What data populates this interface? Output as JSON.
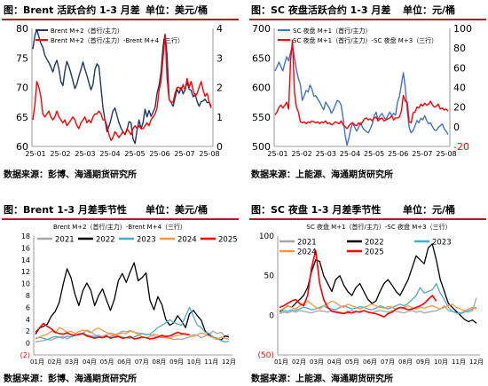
{
  "panels": [
    {
      "title": "图：Brent 活跃合约 1-3 月差",
      "unit": "单位：美元/桶",
      "source": "数据来源：彭博、海通期货研究所"
    },
    {
      "title": "图：SC 夜盘活跃合约 1-3 月差",
      "unit": "单位：元/桶",
      "source": "数据来源：上能源、海通期货研究所"
    },
    {
      "title": "图：Brent 1-3 月差季节性",
      "unit": "单位：美元/桶",
      "source": "数据来源：彭博、海通期货研究所"
    },
    {
      "title": "图：SC 夜盘 1-3 月差季节性",
      "unit": "单位：元/桶",
      "source": "数据来源：上能源、海通期货研究所"
    }
  ],
  "colors": {
    "rule": "#b31b1b",
    "blue": "#4472c4",
    "navy": "#1f3864",
    "red": "#ff0000",
    "gray": "#a6a6a6",
    "black": "#000000",
    "teal": "#4bacc6",
    "orange": "#f79646"
  },
  "chart_data": [
    {
      "type": "line",
      "x_labels": [
        "25-01",
        "25-02",
        "25-03",
        "25-04",
        "25-05",
        "25-06",
        "25-07",
        "25-08"
      ],
      "left_axis": {
        "ticks": [
          60,
          65,
          70,
          75,
          80
        ],
        "ylim": [
          60,
          80
        ]
      },
      "right_axis": {
        "ticks": [
          0,
          1,
          2,
          3,
          4
        ],
        "ylim": [
          0,
          4
        ]
      },
      "series": [
        {
          "name": "Brent M+2（首行/主力）",
          "axis": "left",
          "values": [
            76.5,
            78.8,
            79.8,
            78.6,
            77.5,
            76.8,
            75.4,
            74.8,
            74.2,
            73.5,
            72.6,
            73.8,
            74.6,
            73.1,
            71.0,
            70.3,
            72.7,
            74.4,
            73.5,
            72.4,
            71.1,
            69.8,
            70.6,
            71.9,
            73.0,
            74.3,
            73.1,
            72.0,
            70.8,
            69.6,
            70.5,
            73.0,
            74.0,
            73.5,
            70.0,
            66.6,
            64.5,
            62.5,
            63.4,
            64.6,
            66.0,
            66.5,
            65.2,
            64.0,
            63.1,
            62.5,
            62.0,
            62.8,
            64.2,
            64.0,
            61.3,
            60.5,
            62.7,
            64.5,
            63.0,
            64.0,
            66.3,
            65.0,
            66.1,
            65.1,
            65.8,
            66.6,
            69.0,
            70.4,
            72.6,
            77.0,
            79.0,
            75.5,
            68.0,
            67.5,
            66.8,
            68.2,
            69.7,
            69.0,
            70.0,
            68.9,
            69.6,
            70.9,
            69.7,
            69.5,
            68.4,
            68.9,
            67.6,
            66.8,
            67.6,
            67.7,
            68.0,
            67.4,
            67.5,
            66.8
          ]
        },
        {
          "name": "Brent M+2（首行/主力）-Brent M+4（三行）",
          "axis": "right",
          "values": [
            0.9,
            1.4,
            2.2,
            2.0,
            1.7,
            1.1,
            1.0,
            1.1,
            1.2,
            1.0,
            0.9,
            1.0,
            1.2,
            1.0,
            0.9,
            0.8,
            0.9,
            0.7,
            0.8,
            0.9,
            1.0,
            0.9,
            0.7,
            0.6,
            0.8,
            0.9,
            1.0,
            0.8,
            0.9,
            0.8,
            1.0,
            1.1,
            1.1,
            1.2,
            1.1,
            0.9,
            0.9,
            0.7,
            0.4,
            0.2,
            0.3,
            0.5,
            0.4,
            0.3,
            0.4,
            0.5,
            0.4,
            0.6,
            0.5,
            0.4,
            0.6,
            0.7,
            0.6,
            0.7,
            0.6,
            0.6,
            0.7,
            0.8,
            0.7,
            0.9,
            1.0,
            1.1,
            1.3,
            1.9,
            2.2,
            3.0,
            3.8,
            2.3,
            1.6,
            1.5,
            1.5,
            1.8,
            2.0,
            2.0,
            1.9,
            2.1,
            1.9,
            2.3,
            2.0,
            2.2,
            1.9,
            1.7,
            1.8,
            2.0,
            2.2,
            1.9,
            1.7,
            1.8,
            1.5,
            1.3
          ]
        }
      ]
    },
    {
      "type": "line",
      "x_labels": [
        "25-01",
        "25-02",
        "25-03",
        "25-04",
        "25-05",
        "25-06",
        "25-07",
        "25-08"
      ],
      "left_axis": {
        "ticks": [
          500,
          550,
          600,
          650,
          700
        ],
        "ylim": [
          500,
          700
        ]
      },
      "right_axis": {
        "ticks": [
          -20,
          0,
          20,
          40,
          60,
          80,
          100
        ],
        "ylim": [
          -20,
          100
        ]
      },
      "series": [
        {
          "name": "SC 夜盘 M+1（首行/主力）",
          "axis": "left",
          "values": [
            628,
            635,
            643,
            635,
            628,
            641,
            652,
            645,
            660,
            670,
            651,
            630,
            615,
            605,
            578,
            586,
            595,
            592,
            604,
            597,
            585,
            586,
            580,
            575,
            568,
            562,
            575,
            570,
            565,
            556,
            562,
            570,
            578,
            576,
            570,
            548,
            520,
            502,
            515,
            530,
            540,
            532,
            526,
            532,
            540,
            532,
            528,
            525,
            523,
            530,
            538,
            552,
            558,
            545,
            552,
            556,
            550,
            545,
            552,
            558,
            552,
            556,
            553,
            575,
            585,
            605,
            625,
            600,
            560,
            532,
            523,
            527,
            535,
            544,
            540,
            548,
            545,
            552,
            544,
            538,
            540,
            533,
            528,
            527,
            532,
            535,
            538,
            530,
            526,
            520
          ]
        },
        {
          "name": "SC 夜盘 M+1（首行/主力）-SC 夜盘 M+3（三行）",
          "axis": "right",
          "values": [
            12,
            15,
            20,
            22,
            19,
            22,
            25,
            18,
            68,
            88,
            35,
            20,
            15,
            5,
            4,
            5,
            3,
            5,
            4,
            6,
            5,
            4,
            5,
            3,
            5,
            4,
            6,
            3,
            4,
            2,
            3,
            5,
            4,
            3,
            6,
            2,
            0,
            -2,
            1,
            3,
            4,
            2,
            1,
            4,
            2,
            5,
            8,
            9,
            7,
            8,
            6,
            9,
            10,
            6,
            8,
            9,
            6,
            7,
            8,
            9,
            11,
            7,
            9,
            9,
            10,
            16,
            32,
            26,
            25,
            5,
            4,
            14,
            15,
            20,
            19,
            23,
            21,
            24,
            22,
            23,
            26,
            22,
            20,
            21,
            23,
            18,
            19,
            17,
            18,
            16
          ]
        }
      ]
    },
    {
      "type": "line",
      "legend_title": "Brent M+2（首行/主力）-Brent M+4（三行）",
      "x_labels": [
        "01月",
        "02月",
        "03月",
        "04月",
        "05月",
        "06月",
        "07月",
        "08月",
        "09月",
        "10月",
        "11月",
        "12月"
      ],
      "y_ticks": [
        "(2)",
        "0",
        "2",
        "4",
        "6",
        "8",
        "10",
        "12",
        "14",
        "16",
        "18"
      ],
      "ylim": [
        -2,
        18
      ],
      "series": [
        {
          "name": "2021",
          "values": [
            0.2,
            0.3,
            0.4,
            0.6,
            0.5,
            0.8,
            1.0,
            1.1,
            0.7,
            1.0,
            1.4,
            1.3,
            1.6,
            2.2,
            1.9,
            1.4,
            1.0,
            1.2,
            1.4,
            1.7,
            1.5,
            1.6,
            2.0,
            1.9,
            2.1,
            1.8,
            1.7,
            1.6,
            1.5,
            1.4,
            1.2,
            1.0,
            0.9,
            0.9,
            0.8,
            0.6,
            0.7,
            0.6,
            0.8,
            1.0,
            1.4,
            1.3,
            0.9,
            1.2,
            1.5,
            2.0,
            1.6,
            1.8,
            1.1,
            1.4
          ]
        },
        {
          "name": "2022",
          "values": [
            1.5,
            2.5,
            2.8,
            3.2,
            4.5,
            5.3,
            6.8,
            9.8,
            12.5,
            11.0,
            8.2,
            6.3,
            8.8,
            10.1,
            8.9,
            6.3,
            8.0,
            9.1,
            7.2,
            5.5,
            7.4,
            10.5,
            11.7,
            10.2,
            12.0,
            13.5,
            10.5,
            11.0,
            11.8,
            7.2,
            5.6,
            7.8,
            6.5,
            4.0,
            3.0,
            3.4,
            4.6,
            3.7,
            2.6,
            4.9,
            5.5,
            4.6,
            3.8,
            2.0,
            1.3,
            1.0,
            0.8,
            0.5,
            1.2,
            1.0
          ]
        },
        {
          "name": "2023",
          "values": [
            0.7,
            1.0,
            0.8,
            0.6,
            0.9,
            1.1,
            1.0,
            0.8,
            1.2,
            1.0,
            1.3,
            1.5,
            1.7,
            1.4,
            1.2,
            1.1,
            1.3,
            0.9,
            1.0,
            1.1,
            1.3,
            1.2,
            1.0,
            0.9,
            0.8,
            1.0,
            1.3,
            1.6,
            1.4,
            1.5,
            2.0,
            2.6,
            3.0,
            3.4,
            3.9,
            3.5,
            3.2,
            3.0,
            4.5,
            6.0,
            4.5,
            3.0,
            2.6,
            1.8,
            1.6,
            1.0,
            0.8,
            0.4,
            0.2,
            0.3
          ]
        },
        {
          "name": "2024",
          "values": [
            0.8,
            1.0,
            1.3,
            1.5,
            2.0,
            1.7,
            2.6,
            2.3,
            1.8,
            2.0,
            1.6,
            1.9,
            2.2,
            2.0,
            1.7,
            2.3,
            2.5,
            2.1,
            1.8,
            1.5,
            1.4,
            1.5,
            1.7,
            1.6,
            2.0,
            1.9,
            1.4,
            1.0,
            0.9,
            1.1,
            1.5,
            1.3,
            1.1,
            1.0,
            0.8,
            1.1,
            1.3,
            1.4,
            1.6,
            1.3,
            1.1,
            1.4,
            1.7,
            1.5,
            1.2,
            0.9,
            0.6,
            1.0,
            0.8,
            0.6
          ]
        },
        {
          "name": "2025",
          "values": [
            1.8,
            2.5,
            3.3,
            2.8,
            2.4,
            1.8,
            1.6,
            1.5,
            1.7,
            1.4,
            1.3,
            1.5,
            1.6,
            1.2,
            1.0,
            0.8,
            1.0,
            0.9,
            1.2,
            0.8,
            1.0,
            1.1,
            0.8,
            0.9,
            1.1,
            0.7,
            0.8,
            1.0,
            0.9,
            0.7,
            0.8,
            1.0,
            1.3,
            1.1,
            1.2,
            1.5,
            1.8,
            1.6,
            1.5,
            1.4
          ]
        }
      ]
    },
    {
      "type": "line",
      "legend_title": "SC 夜盘 M+1（首行/主力）-SC 夜盘 M+3（三行）",
      "x_labels": [
        "01月",
        "02月",
        "03月",
        "04月",
        "05月",
        "06月",
        "07月",
        "08月",
        "09月",
        "10月",
        "11月",
        "12月"
      ],
      "y_ticks": [
        "(50)",
        "0",
        "50",
        "100"
      ],
      "ylim": [
        -50,
        100
      ],
      "series": [
        {
          "name": "2021",
          "values": [
            2,
            4,
            3,
            5,
            4,
            6,
            5,
            4,
            3,
            5,
            6,
            5,
            4,
            6,
            5,
            4,
            3,
            5,
            6,
            4,
            5,
            6,
            4,
            3,
            5,
            6,
            5,
            4,
            6,
            5,
            4,
            3,
            5,
            6,
            4,
            5,
            3,
            4,
            5,
            6,
            8,
            12,
            6,
            5,
            4,
            3,
            5,
            4,
            6,
            22
          ]
        },
        {
          "name": "2022",
          "values": [
            5,
            8,
            12,
            10,
            15,
            20,
            25,
            35,
            55,
            70,
            68,
            50,
            40,
            30,
            45,
            50,
            38,
            30,
            25,
            35,
            40,
            30,
            20,
            15,
            18,
            30,
            40,
            45,
            38,
            30,
            25,
            35,
            45,
            60,
            75,
            70,
            65,
            85,
            90,
            70,
            45,
            30,
            15,
            10,
            5,
            0,
            -5,
            -8,
            -6,
            -10
          ]
        },
        {
          "name": "2023",
          "values": [
            4,
            6,
            5,
            7,
            6,
            8,
            10,
            9,
            7,
            8,
            10,
            12,
            9,
            8,
            7,
            10,
            12,
            10,
            8,
            9,
            11,
            10,
            8,
            7,
            9,
            12,
            10,
            8,
            10,
            12,
            14,
            12,
            15,
            20,
            25,
            35,
            28,
            30,
            32,
            40,
            28,
            20,
            10,
            5,
            3,
            2,
            4,
            6,
            8,
            10
          ]
        },
        {
          "name": "2024",
          "values": [
            6,
            8,
            12,
            10,
            8,
            12,
            15,
            18,
            14,
            10,
            8,
            12,
            15,
            18,
            16,
            12,
            10,
            14,
            12,
            10,
            8,
            10,
            12,
            14,
            12,
            10,
            9,
            11,
            10,
            8,
            9,
            10,
            12,
            10,
            8,
            10,
            9,
            11,
            12,
            10,
            8,
            10,
            12,
            14,
            10,
            8,
            6,
            8,
            10,
            8
          ]
        },
        {
          "name": "2025",
          "values": [
            10,
            12,
            15,
            18,
            20,
            15,
            12,
            25,
            60,
            82,
            40,
            20,
            10,
            5,
            4,
            3,
            2,
            4,
            3,
            5,
            4,
            6,
            4,
            3,
            2,
            0,
            -2,
            2,
            4,
            8,
            10,
            9,
            7,
            8,
            10,
            12,
            15,
            20,
            25,
            18
          ]
        }
      ]
    }
  ]
}
